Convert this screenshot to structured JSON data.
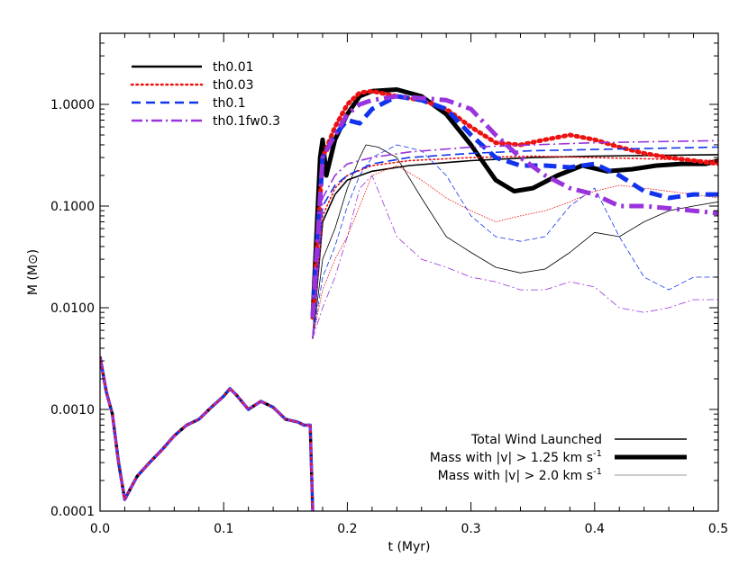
{
  "chart_data": {
    "type": "line",
    "title": "",
    "xlabel": "t (Myr)",
    "ylabel": "M (M⊙)",
    "xlim": [
      0.0,
      0.5
    ],
    "ylim": [
      0.0001,
      5.0
    ],
    "yscale": "log",
    "grid": false,
    "xticks": [
      {
        "v": 0.0,
        "label": "0.0"
      },
      {
        "v": 0.1,
        "label": "0.1"
      },
      {
        "v": 0.2,
        "label": "0.2"
      },
      {
        "v": 0.3,
        "label": "0.3"
      },
      {
        "v": 0.4,
        "label": "0.4"
      },
      {
        "v": 0.5,
        "label": "0.5"
      }
    ],
    "yticks": [
      {
        "v": 0.0001,
        "label": "0.0001"
      },
      {
        "v": 0.001,
        "label": "0.0010"
      },
      {
        "v": 0.01,
        "label": "0.0100"
      },
      {
        "v": 0.1,
        "label": "0.1000"
      },
      {
        "v": 1.0,
        "label": "1.0000"
      }
    ],
    "legend_runs": {
      "placement": "top-left",
      "entries": [
        {
          "name": "th0.01",
          "color": "#000000",
          "dash": "solid"
        },
        {
          "name": "th0.03",
          "color": "#ee1111",
          "dash": "dotted"
        },
        {
          "name": "th0.1",
          "color": "#1133ee",
          "dash": "dashed"
        },
        {
          "name": "th0.1fw0.3",
          "color": "#9933dd",
          "dash": "dashdot"
        }
      ]
    },
    "legend_quantities": {
      "placement": "bottom-right",
      "entries": [
        {
          "name": "Total Wind Launched",
          "style": "medium"
        },
        {
          "name": "Mass with |v| > 1.25 km s",
          "sup": "-1",
          "style": "thick"
        },
        {
          "name": "Mass with |v| > 2.0 km s",
          "sup": "-1",
          "style": "thin"
        }
      ]
    },
    "series": [
      {
        "run": "th0.01",
        "quantity": "total",
        "x": [
          0.172,
          0.18,
          0.19,
          0.2,
          0.22,
          0.25,
          0.3,
          0.35,
          0.4,
          0.45,
          0.5
        ],
        "y": [
          0.005,
          0.07,
          0.13,
          0.18,
          0.22,
          0.25,
          0.28,
          0.3,
          0.31,
          0.315,
          0.32
        ]
      },
      {
        "run": "th0.01",
        "quantity": "gt1.25",
        "x": [
          0.172,
          0.178,
          0.18,
          0.183,
          0.19,
          0.2,
          0.21,
          0.22,
          0.24,
          0.26,
          0.28,
          0.3,
          0.32,
          0.335,
          0.35,
          0.37,
          0.39,
          0.41,
          0.43,
          0.45,
          0.47,
          0.49,
          0.5
        ],
        "y": [
          0.008,
          0.3,
          0.45,
          0.2,
          0.45,
          0.8,
          1.2,
          1.35,
          1.4,
          1.2,
          0.8,
          0.4,
          0.18,
          0.14,
          0.15,
          0.2,
          0.25,
          0.22,
          0.23,
          0.25,
          0.26,
          0.26,
          0.28
        ]
      },
      {
        "run": "th0.01",
        "quantity": "gt2.0",
        "x": [
          0.172,
          0.18,
          0.19,
          0.2,
          0.21,
          0.215,
          0.225,
          0.24,
          0.26,
          0.28,
          0.3,
          0.32,
          0.34,
          0.36,
          0.38,
          0.4,
          0.42,
          0.44,
          0.46,
          0.48,
          0.5
        ],
        "y": [
          0.005,
          0.03,
          0.06,
          0.15,
          0.3,
          0.4,
          0.38,
          0.3,
          0.12,
          0.05,
          0.035,
          0.025,
          0.022,
          0.024,
          0.035,
          0.055,
          0.05,
          0.07,
          0.09,
          0.1,
          0.11
        ]
      },
      {
        "run": "th0.03",
        "quantity": "total",
        "x": [
          0.172,
          0.18,
          0.19,
          0.2,
          0.22,
          0.25,
          0.3,
          0.35,
          0.4,
          0.45,
          0.5
        ],
        "y": [
          0.005,
          0.08,
          0.15,
          0.2,
          0.25,
          0.28,
          0.3,
          0.31,
          0.3,
          0.29,
          0.28
        ]
      },
      {
        "run": "th0.03",
        "quantity": "gt1.25",
        "x": [
          0.172,
          0.18,
          0.19,
          0.2,
          0.21,
          0.22,
          0.24,
          0.26,
          0.28,
          0.3,
          0.32,
          0.34,
          0.36,
          0.38,
          0.4,
          0.42,
          0.44,
          0.46,
          0.48,
          0.5
        ],
        "y": [
          0.008,
          0.3,
          0.6,
          1.0,
          1.3,
          1.35,
          1.2,
          1.1,
          0.9,
          0.6,
          0.42,
          0.4,
          0.45,
          0.5,
          0.45,
          0.38,
          0.33,
          0.3,
          0.28,
          0.26
        ]
      },
      {
        "run": "th0.03",
        "quantity": "gt2.0",
        "x": [
          0.172,
          0.18,
          0.19,
          0.2,
          0.21,
          0.22,
          0.24,
          0.26,
          0.28,
          0.3,
          0.32,
          0.34,
          0.36,
          0.38,
          0.4,
          0.42,
          0.44,
          0.46,
          0.48,
          0.5
        ],
        "y": [
          0.005,
          0.015,
          0.03,
          0.05,
          0.1,
          0.2,
          0.25,
          0.18,
          0.12,
          0.09,
          0.07,
          0.08,
          0.09,
          0.11,
          0.14,
          0.16,
          0.15,
          0.14,
          0.13,
          0.12
        ]
      },
      {
        "run": "th0.1",
        "quantity": "total",
        "x": [
          0.172,
          0.18,
          0.19,
          0.2,
          0.22,
          0.25,
          0.3,
          0.35,
          0.4,
          0.45,
          0.5
        ],
        "y": [
          0.005,
          0.1,
          0.16,
          0.2,
          0.26,
          0.3,
          0.33,
          0.35,
          0.36,
          0.37,
          0.38
        ]
      },
      {
        "run": "th0.1",
        "quantity": "gt1.25",
        "x": [
          0.172,
          0.18,
          0.19,
          0.2,
          0.21,
          0.22,
          0.24,
          0.26,
          0.28,
          0.3,
          0.32,
          0.34,
          0.36,
          0.38,
          0.4,
          0.42,
          0.44,
          0.46,
          0.48,
          0.5
        ],
        "y": [
          0.008,
          0.3,
          0.5,
          0.7,
          0.65,
          0.9,
          1.2,
          1.1,
          0.9,
          0.5,
          0.3,
          0.25,
          0.25,
          0.24,
          0.26,
          0.2,
          0.14,
          0.12,
          0.13,
          0.13
        ]
      },
      {
        "run": "th0.1",
        "quantity": "gt2.0",
        "x": [
          0.172,
          0.18,
          0.19,
          0.2,
          0.21,
          0.22,
          0.24,
          0.26,
          0.28,
          0.3,
          0.32,
          0.34,
          0.36,
          0.38,
          0.4,
          0.42,
          0.44,
          0.46,
          0.48,
          0.5
        ],
        "y": [
          0.005,
          0.02,
          0.04,
          0.1,
          0.2,
          0.3,
          0.4,
          0.35,
          0.2,
          0.08,
          0.05,
          0.045,
          0.05,
          0.1,
          0.15,
          0.05,
          0.02,
          0.015,
          0.02,
          0.02
        ]
      },
      {
        "run": "th0.1fw0.3",
        "quantity": "total",
        "x": [
          0.172,
          0.18,
          0.19,
          0.2,
          0.22,
          0.25,
          0.3,
          0.35,
          0.4,
          0.45,
          0.5
        ],
        "y": [
          0.005,
          0.12,
          0.2,
          0.26,
          0.3,
          0.34,
          0.38,
          0.4,
          0.42,
          0.43,
          0.44
        ]
      },
      {
        "run": "th0.1fw0.3",
        "quantity": "gt1.25",
        "x": [
          0.172,
          0.18,
          0.19,
          0.2,
          0.21,
          0.22,
          0.24,
          0.26,
          0.28,
          0.3,
          0.32,
          0.34,
          0.36,
          0.38,
          0.4,
          0.42,
          0.44,
          0.46,
          0.48,
          0.5
        ],
        "y": [
          0.008,
          0.3,
          0.5,
          0.8,
          1.0,
          1.1,
          1.2,
          1.15,
          1.1,
          0.9,
          0.5,
          0.3,
          0.2,
          0.15,
          0.13,
          0.1,
          0.1,
          0.095,
          0.09,
          0.085
        ]
      },
      {
        "run": "th0.1fw0.3",
        "quantity": "gt2.0",
        "x": [
          0.172,
          0.18,
          0.19,
          0.2,
          0.21,
          0.22,
          0.23,
          0.24,
          0.26,
          0.28,
          0.3,
          0.32,
          0.34,
          0.36,
          0.38,
          0.4,
          0.42,
          0.44,
          0.46,
          0.48,
          0.5
        ],
        "y": [
          0.005,
          0.01,
          0.02,
          0.05,
          0.15,
          0.2,
          0.1,
          0.05,
          0.03,
          0.025,
          0.02,
          0.018,
          0.015,
          0.015,
          0.018,
          0.016,
          0.01,
          0.009,
          0.01,
          0.012,
          0.012
        ]
      },
      {
        "run": "all",
        "quantity": "early",
        "x": [
          0.0,
          0.005,
          0.01,
          0.015,
          0.02,
          0.025,
          0.03,
          0.04,
          0.05,
          0.06,
          0.07,
          0.08,
          0.09,
          0.1,
          0.105,
          0.11,
          0.12,
          0.13,
          0.14,
          0.15,
          0.16,
          0.165,
          0.17,
          0.172
        ],
        "y": [
          0.0033,
          0.0015,
          0.0009,
          0.0003,
          0.00013,
          0.00017,
          0.00022,
          0.0003,
          0.0004,
          0.00055,
          0.0007,
          0.0008,
          0.00105,
          0.00135,
          0.0016,
          0.0014,
          0.001,
          0.0012,
          0.00105,
          0.0008,
          0.00075,
          0.0007,
          0.0007,
          0.0001
        ]
      }
    ]
  }
}
